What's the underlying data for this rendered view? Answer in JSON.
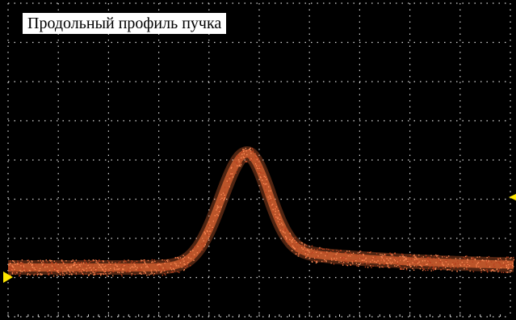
{
  "screen": {
    "title": "Продольный профиль пучка",
    "trace_color": "#e86a35",
    "grid_color": "#d8d8d8",
    "marker_color": "#ffe600",
    "background_color": "#000000",
    "grid_divisions_x": 10,
    "grid_divisions_y": 8,
    "ground_marker_icon": "triangle-right",
    "trigger_marker_icon": "trigger-arrow"
  }
}
